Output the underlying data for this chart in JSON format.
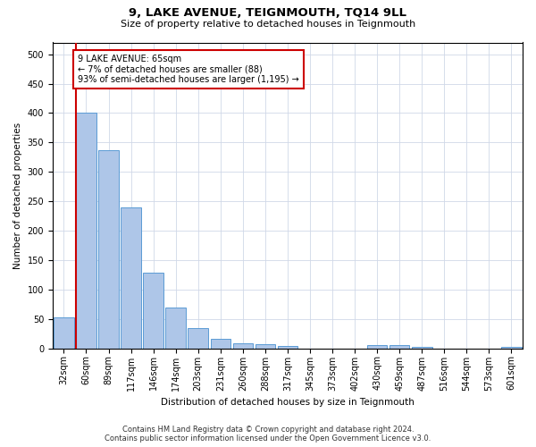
{
  "title": "9, LAKE AVENUE, TEIGNMOUTH, TQ14 9LL",
  "subtitle": "Size of property relative to detached houses in Teignmouth",
  "xlabel": "Distribution of detached houses by size in Teignmouth",
  "ylabel": "Number of detached properties",
  "bar_labels": [
    "32sqm",
    "60sqm",
    "89sqm",
    "117sqm",
    "146sqm",
    "174sqm",
    "203sqm",
    "231sqm",
    "260sqm",
    "288sqm",
    "317sqm",
    "345sqm",
    "373sqm",
    "402sqm",
    "430sqm",
    "459sqm",
    "487sqm",
    "516sqm",
    "544sqm",
    "573sqm",
    "601sqm"
  ],
  "bar_values": [
    52,
    400,
    337,
    240,
    128,
    70,
    35,
    16,
    8,
    7,
    4,
    0,
    0,
    0,
    5,
    5,
    2,
    0,
    0,
    0,
    3
  ],
  "bar_color": "#aec6e8",
  "bar_edge_color": "#5b9bd5",
  "marker_color": "#cc0000",
  "ylim": [
    0,
    520
  ],
  "yticks": [
    0,
    50,
    100,
    150,
    200,
    250,
    300,
    350,
    400,
    450,
    500
  ],
  "annotation_text": "9 LAKE AVENUE: 65sqm\n← 7% of detached houses are smaller (88)\n93% of semi-detached houses are larger (1,195) →",
  "footer_line1": "Contains HM Land Registry data © Crown copyright and database right 2024.",
  "footer_line2": "Contains public sector information licensed under the Open Government Licence v3.0.",
  "background_color": "#ffffff",
  "grid_color": "#d0d8e8",
  "title_fontsize": 9.5,
  "subtitle_fontsize": 8,
  "axis_label_fontsize": 7.5,
  "tick_fontsize": 7,
  "annotation_fontsize": 7,
  "footer_fontsize": 6
}
